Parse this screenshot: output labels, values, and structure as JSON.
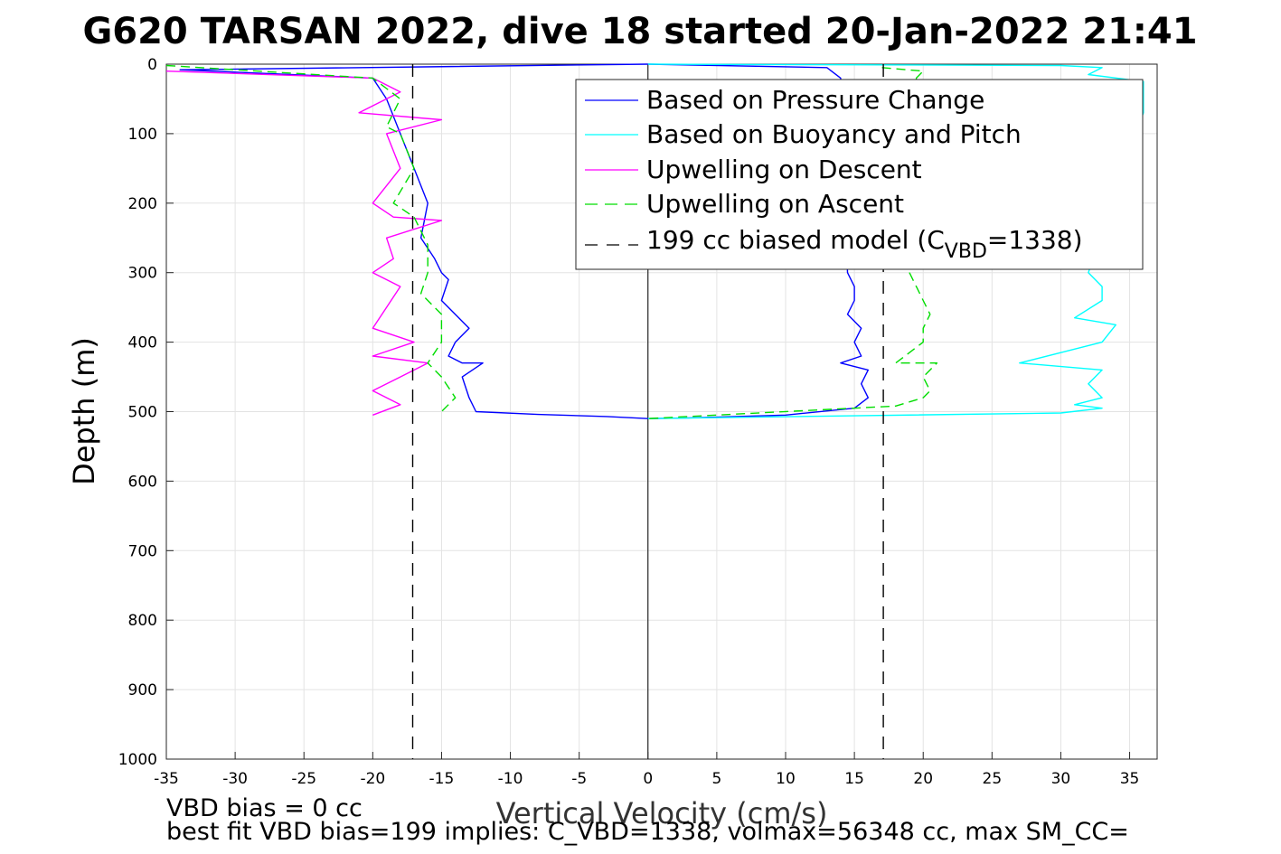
{
  "chart_data": {
    "type": "line",
    "title": "G620 TARSAN 2022, dive 18 started 20-Jan-2022 21:41",
    "xlabel": "Vertical Velocity (cm/s)",
    "ylabel": "Depth (m)",
    "xlim": [
      -35,
      37
    ],
    "ylim": [
      0,
      1000
    ],
    "y_reversed": true,
    "xticks": [
      -35,
      -30,
      -25,
      -20,
      -15,
      -10,
      -5,
      0,
      5,
      10,
      15,
      20,
      25,
      30,
      35
    ],
    "yticks": [
      0,
      100,
      200,
      300,
      400,
      500,
      600,
      700,
      800,
      900,
      1000
    ],
    "grid": true,
    "legend_position": "top-right",
    "legend": {
      "pressure": "Based on Pressure Change",
      "buoyancy": "Based on Buoyancy and Pitch",
      "descent": "Upwelling on Descent",
      "ascent": "Upwelling on Ascent",
      "model_prefix": "199 cc biased model (C",
      "model_sub": "VBD",
      "model_suffix": "=1338)"
    },
    "series": [
      {
        "name": "Based on Pressure Change",
        "color": "#0000ff",
        "style": "solid",
        "segments": [
          {
            "x": [
              0,
              -34,
              -20,
              -19,
              -18,
              -17,
              -16,
              -16.5,
              -15.5,
              -15,
              -14.5,
              -15,
              -13,
              -14,
              -14.5,
              -13.5,
              -12,
              -13.5,
              -13,
              -12.5,
              -8,
              -3,
              0
            ],
            "y": [
              0,
              8,
              20,
              50,
              100,
              150,
              200,
              250,
              280,
              300,
              310,
              340,
              380,
              400,
              420,
              430,
              430,
              450,
              480,
              500,
              504,
              507,
              510
            ]
          },
          {
            "x": [
              0,
              13,
              14,
              14.5,
              15,
              15,
              14.5,
              15.5,
              15,
              15.5,
              14,
              16,
              15.5,
              16,
              15,
              10,
              3,
              0
            ],
            "y": [
              0,
              5,
              20,
              300,
              320,
              340,
              360,
              380,
              400,
              420,
              430,
              440,
              460,
              480,
              495,
              505,
              509,
              510
            ]
          }
        ]
      },
      {
        "name": "Based on Buoyancy and Pitch",
        "color": "#00ffff",
        "style": "solid",
        "segments": [
          {
            "x": [
              0,
              30,
              33,
              32,
              36,
              36,
              32,
              33,
              33,
              31,
              34,
              33,
              27,
              33,
              32,
              33,
              31,
              33,
              30,
              15,
              0
            ],
            "y": [
              0,
              2,
              5,
              15,
              25,
              70,
              300,
              320,
              340,
              365,
              375,
              400,
              430,
              440,
              460,
              480,
              490,
              495,
              502,
              506,
              510
            ]
          }
        ]
      },
      {
        "name": "Upwelling on Descent",
        "color": "#ff00ff",
        "style": "solid",
        "segments": [
          {
            "x": [
              -35,
              -20,
              -18,
              -21,
              -15,
              -19,
              -18,
              -20,
              -18.5,
              -15,
              -19,
              -18.5,
              -20,
              -18,
              -19,
              -20,
              -17,
              -20,
              -16,
              -18,
              -20,
              -18,
              -20
            ],
            "y": [
              10,
              20,
              40,
              70,
              80,
              100,
              150,
              200,
              220,
              225,
              250,
              280,
              300,
              320,
              350,
              380,
              400,
              420,
              430,
              450,
              470,
              490,
              505
            ]
          }
        ]
      },
      {
        "name": "Upwelling on Ascent",
        "color": "#00dd00",
        "style": "dashed",
        "segments": [
          {
            "x": [
              -35,
              -20,
              -18,
              -19,
              -18,
              -17,
              -18.5,
              -17,
              -16,
              -16,
              -16.5,
              -15,
              -15,
              -16,
              -15,
              -14,
              -15
            ],
            "y": [
              2,
              20,
              50,
              90,
              100,
              150,
              200,
              220,
              260,
              300,
              330,
              360,
              400,
              430,
              450,
              480,
              500
            ]
          },
          {
            "x": [
              17,
              20,
              19.5,
              19,
              19.5,
              20,
              20.5,
              20,
              20,
              18,
              21,
              20,
              20.5,
              20,
              18,
              5,
              0
            ],
            "y": [
              5,
              10,
              20,
              300,
              320,
              340,
              360,
              380,
              400,
              430,
              430,
              450,
              470,
              480,
              492,
              505,
              510
            ]
          }
        ]
      },
      {
        "name": "199 cc biased model (CVBD=1338)",
        "color": "#000000",
        "style": "longdash",
        "segments": [
          {
            "x": [
              -17.1,
              -17.1
            ],
            "y": [
              0,
              1000
            ]
          },
          {
            "x": [
              17.1,
              17.1
            ],
            "y": [
              0,
              1000
            ]
          }
        ]
      }
    ],
    "annotations": {
      "bias": "VBD bias = 0 cc",
      "fit": "best fit VBD bias=199 implies: C_VBD=1338, volmax=56348 cc, max SM_CC="
    }
  }
}
